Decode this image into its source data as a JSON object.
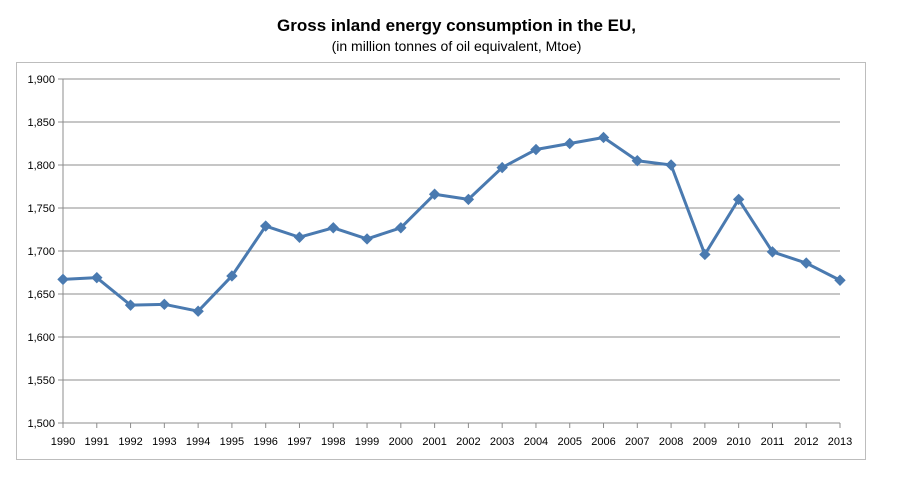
{
  "chart_data": {
    "type": "line",
    "title": "Gross inland energy consumption in the EU,",
    "subtitle": "(in million tonnes of oil equivalent, Mtoe)",
    "xlabel": "",
    "ylabel": "",
    "x": [
      "1990",
      "1991",
      "1992",
      "1993",
      "1994",
      "1995",
      "1996",
      "1997",
      "1998",
      "1999",
      "2000",
      "2001",
      "2002",
      "2003",
      "2004",
      "2005",
      "2006",
      "2007",
      "2008",
      "2009",
      "2010",
      "2011",
      "2012",
      "2013"
    ],
    "yticks": [
      "1,500",
      "1,550",
      "1,600",
      "1,650",
      "1,700",
      "1,750",
      "1,800",
      "1,850",
      "1,900"
    ],
    "ylim": [
      1500,
      1900
    ],
    "grid": true,
    "legend": "none",
    "series": [
      {
        "values": [
          1667,
          1669,
          1637,
          1638,
          1630,
          1671,
          1729,
          1716,
          1727,
          1714,
          1727,
          1766,
          1760,
          1797,
          1818,
          1825,
          1832,
          1805,
          1800,
          1696,
          1760,
          1699,
          1686,
          1666
        ],
        "color": "#4a7ab0",
        "marker": "diamond"
      }
    ]
  }
}
